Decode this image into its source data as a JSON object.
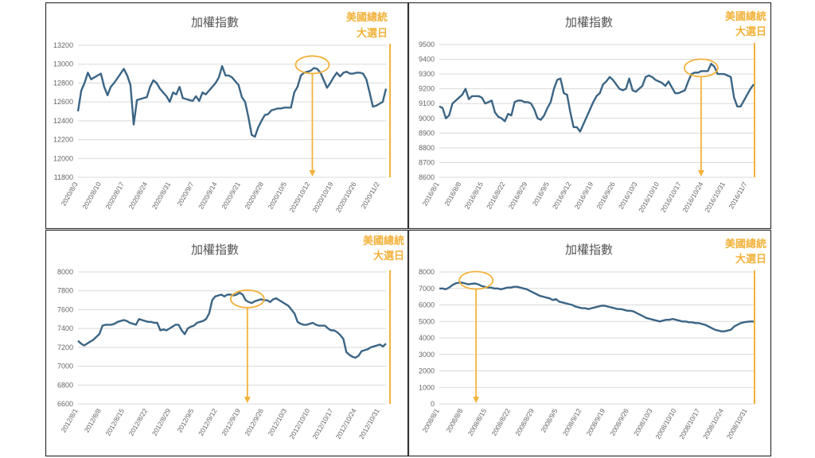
{
  "page": {
    "annotation_color": "#f2b23a",
    "line_color": "#3b6585",
    "grid_color": "#d9d9d9",
    "border_color": "#333333"
  },
  "chart_data": [
    {
      "type": "line",
      "title": "加權指數",
      "annotation": [
        "美國總統",
        "大選日"
      ],
      "ylim": [
        11800,
        13200
      ],
      "yticks": [
        11800,
        12000,
        12200,
        12400,
        12600,
        12800,
        13000,
        13200
      ],
      "xticks": [
        "2020/8/3",
        "2020/8/10",
        "2020/8/17",
        "2020/8/24",
        "2020/8/31",
        "2020/9/7",
        "2020/9/14",
        "2020/9/21",
        "2020/9/28",
        "2020/10/5",
        "2020/10/12",
        "2020/10/19",
        "2020/10/26",
        "2020/11/2"
      ],
      "grid": true,
      "legend": "none",
      "highlight_index": 10.1,
      "arrow_index": 10.1,
      "series": [
        {
          "values": [
            12500,
            12720,
            12800,
            12910,
            12840,
            12860,
            12880,
            12900,
            12760,
            12670,
            12760,
            12800,
            12850,
            12900,
            12950,
            12880,
            12780,
            12360,
            12620,
            12630,
            12640,
            12650,
            12760,
            12830,
            12800,
            12740,
            12700,
            12660,
            12600,
            12700,
            12680,
            12760,
            12640,
            12630,
            12620,
            12610,
            12660,
            12610,
            12700,
            12680,
            12720,
            12760,
            12800,
            12860,
            12980,
            12880,
            12880,
            12860,
            12820,
            12780,
            12650,
            12600,
            12440,
            12250,
            12230,
            12330,
            12400,
            12460,
            12470,
            12510,
            12520,
            12530,
            12530,
            12540,
            12540,
            12540,
            12700,
            12760,
            12880,
            12910,
            12920,
            12930,
            12960,
            12950,
            12910,
            12830,
            12750,
            12800,
            12860,
            12910,
            12870,
            12910,
            12920,
            12900,
            12900,
            12910,
            12910,
            12900,
            12840,
            12700,
            12550,
            12560,
            12580,
            12600,
            12740
          ]
        }
      ]
    },
    {
      "type": "line",
      "title": "加權指數",
      "annotation": [
        "美國總統",
        "大選日"
      ],
      "ylim": [
        8600,
        9500
      ],
      "yticks": [
        8600,
        8700,
        8800,
        8900,
        9000,
        9100,
        9200,
        9300,
        9400,
        9500
      ],
      "xticks": [
        "2016/8/1",
        "2016/8/8",
        "2016/8/15",
        "2016/8/22",
        "2016/8/29",
        "2016/9/5",
        "2016/9/12",
        "2016/9/19",
        "2016/9/26",
        "2016/10/3",
        "2016/10/10",
        "2016/10/17",
        "2016/10/24",
        "2016/10/31",
        "2016/11/7"
      ],
      "grid": true,
      "legend": "none",
      "highlight_index": 11.9,
      "arrow_index": 11.9,
      "series": [
        {
          "values": [
            9080,
            9070,
            9000,
            9020,
            9100,
            9120,
            9140,
            9160,
            9200,
            9130,
            9150,
            9150,
            9150,
            9140,
            9100,
            9110,
            9120,
            9040,
            9010,
            9000,
            8980,
            9030,
            9020,
            9110,
            9120,
            9120,
            9110,
            9110,
            9100,
            9060,
            9000,
            8990,
            9020,
            9070,
            9110,
            9200,
            9260,
            9270,
            9170,
            9160,
            9040,
            8940,
            8940,
            8910,
            8960,
            9010,
            9060,
            9110,
            9150,
            9170,
            9230,
            9250,
            9280,
            9260,
            9230,
            9200,
            9190,
            9200,
            9270,
            9190,
            9180,
            9200,
            9220,
            9280,
            9290,
            9280,
            9260,
            9250,
            9240,
            9220,
            9250,
            9210,
            9170,
            9170,
            9180,
            9190,
            9250,
            9300,
            9310,
            9310,
            9320,
            9320,
            9320,
            9370,
            9350,
            9300,
            9300,
            9300,
            9290,
            9280,
            9140,
            9080,
            9080,
            9120,
            9160,
            9200,
            9230
          ]
        }
      ]
    },
    {
      "type": "line",
      "title": "加權指數",
      "annotation": [
        "美國總統",
        "大選日"
      ],
      "ylim": [
        6600,
        8000
      ],
      "yticks": [
        6600,
        6800,
        7000,
        7200,
        7400,
        7600,
        7800,
        8000
      ],
      "xticks": [
        "2012/8/1",
        "2012/8/8",
        "2012/8/15",
        "2012/8/22",
        "2012/8/29",
        "2012/9/5",
        "2012/9/12",
        "2012/9/19",
        "2012/9/26",
        "2012/10/3",
        "2012/10/10",
        "2012/10/17",
        "2012/10/24",
        "2012/10/31"
      ],
      "grid": true,
      "legend": "none",
      "highlight_index": 7.3,
      "arrow_index": 7.3,
      "series": [
        {
          "values": [
            7270,
            7240,
            7220,
            7240,
            7260,
            7280,
            7310,
            7340,
            7430,
            7440,
            7440,
            7440,
            7450,
            7470,
            7480,
            7490,
            7480,
            7460,
            7450,
            7440,
            7500,
            7490,
            7480,
            7470,
            7470,
            7460,
            7460,
            7380,
            7390,
            7380,
            7400,
            7420,
            7440,
            7440,
            7380,
            7340,
            7400,
            7420,
            7430,
            7460,
            7470,
            7480,
            7500,
            7560,
            7700,
            7740,
            7750,
            7760,
            7740,
            7760,
            7760,
            7750,
            7760,
            7780,
            7760,
            7700,
            7680,
            7670,
            7690,
            7700,
            7710,
            7700,
            7700,
            7680,
            7710,
            7720,
            7700,
            7680,
            7660,
            7640,
            7600,
            7560,
            7470,
            7450,
            7440,
            7440,
            7450,
            7460,
            7440,
            7430,
            7430,
            7430,
            7400,
            7380,
            7380,
            7360,
            7330,
            7290,
            7150,
            7120,
            7100,
            7090,
            7110,
            7160,
            7170,
            7180,
            7200,
            7210,
            7220,
            7230,
            7210,
            7240
          ]
        }
      ]
    },
    {
      "type": "line",
      "title": "加權指數",
      "annotation": [
        "美國總統",
        "大選日"
      ],
      "ylim": [
        0,
        8000
      ],
      "yticks": [
        0,
        1000,
        2000,
        3000,
        4000,
        5000,
        6000,
        7000,
        8000
      ],
      "xticks": [
        "2008/8/1",
        "2008/8/8",
        "2008/8/15",
        "2008/8/22",
        "2008/8/29",
        "2008/9/5",
        "2008/9/12",
        "2008/9/19",
        "2008/9/26",
        "2008/10/3",
        "2008/10/10",
        "2008/10/17",
        "2008/10/24",
        "2008/10/31"
      ],
      "grid": true,
      "legend": "none",
      "highlight_index": 1.55,
      "arrow_index": 1.55,
      "series": [
        {
          "values": [
            7000,
            7000,
            6950,
            7050,
            7200,
            7300,
            7350,
            7350,
            7300,
            7250,
            7280,
            7300,
            7250,
            7150,
            7100,
            7050,
            7050,
            7000,
            7000,
            6950,
            7000,
            7050,
            7050,
            7100,
            7100,
            7050,
            7000,
            6950,
            6850,
            6750,
            6650,
            6550,
            6500,
            6450,
            6400,
            6300,
            6350,
            6200,
            6150,
            6100,
            6050,
            6000,
            5900,
            5850,
            5800,
            5800,
            5750,
            5800,
            5850,
            5900,
            5950,
            5950,
            5900,
            5850,
            5800,
            5750,
            5750,
            5700,
            5650,
            5650,
            5600,
            5500,
            5400,
            5300,
            5200,
            5150,
            5100,
            5050,
            5000,
            5050,
            5100,
            5100,
            5150,
            5100,
            5050,
            5000,
            5000,
            4950,
            4950,
            4900,
            4900,
            4850,
            4800,
            4700,
            4600,
            4500,
            4450,
            4400,
            4400,
            4450,
            4500,
            4700,
            4800,
            4900,
            4950,
            4980,
            5000,
            5000
          ]
        }
      ]
    }
  ]
}
